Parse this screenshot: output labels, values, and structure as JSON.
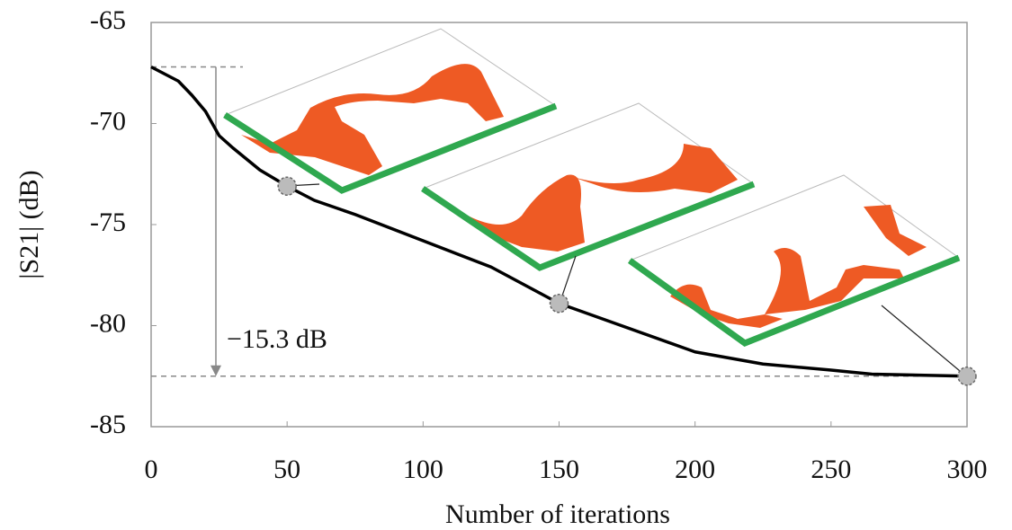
{
  "chart_data": {
    "type": "line",
    "x_label": "Number of iterations",
    "y_label": "|S21| (dB)",
    "x": [
      0,
      10,
      15,
      20,
      25,
      30,
      40,
      50,
      60,
      75,
      100,
      125,
      150,
      175,
      200,
      225,
      250,
      265,
      300
    ],
    "values": [
      -67.2,
      -67.9,
      -68.6,
      -69.4,
      -70.6,
      -71.2,
      -72.3,
      -73.1,
      -73.8,
      -74.5,
      -75.8,
      -77.1,
      -78.9,
      -80.1,
      -81.3,
      -81.9,
      -82.2,
      -82.4,
      -82.5
    ],
    "color": "#000000",
    "highlight_x": [
      50,
      150,
      300
    ],
    "reference_lines": [
      -67.2,
      -82.5
    ],
    "annotation": "−15.3 dB",
    "xlim": [
      0,
      300
    ],
    "xticks": [
      0,
      50,
      100,
      150,
      200,
      250,
      300
    ],
    "ylim": [
      -85,
      -65
    ],
    "yticks": [
      -65,
      -70,
      -75,
      -80,
      -85
    ],
    "grid": false
  }
}
